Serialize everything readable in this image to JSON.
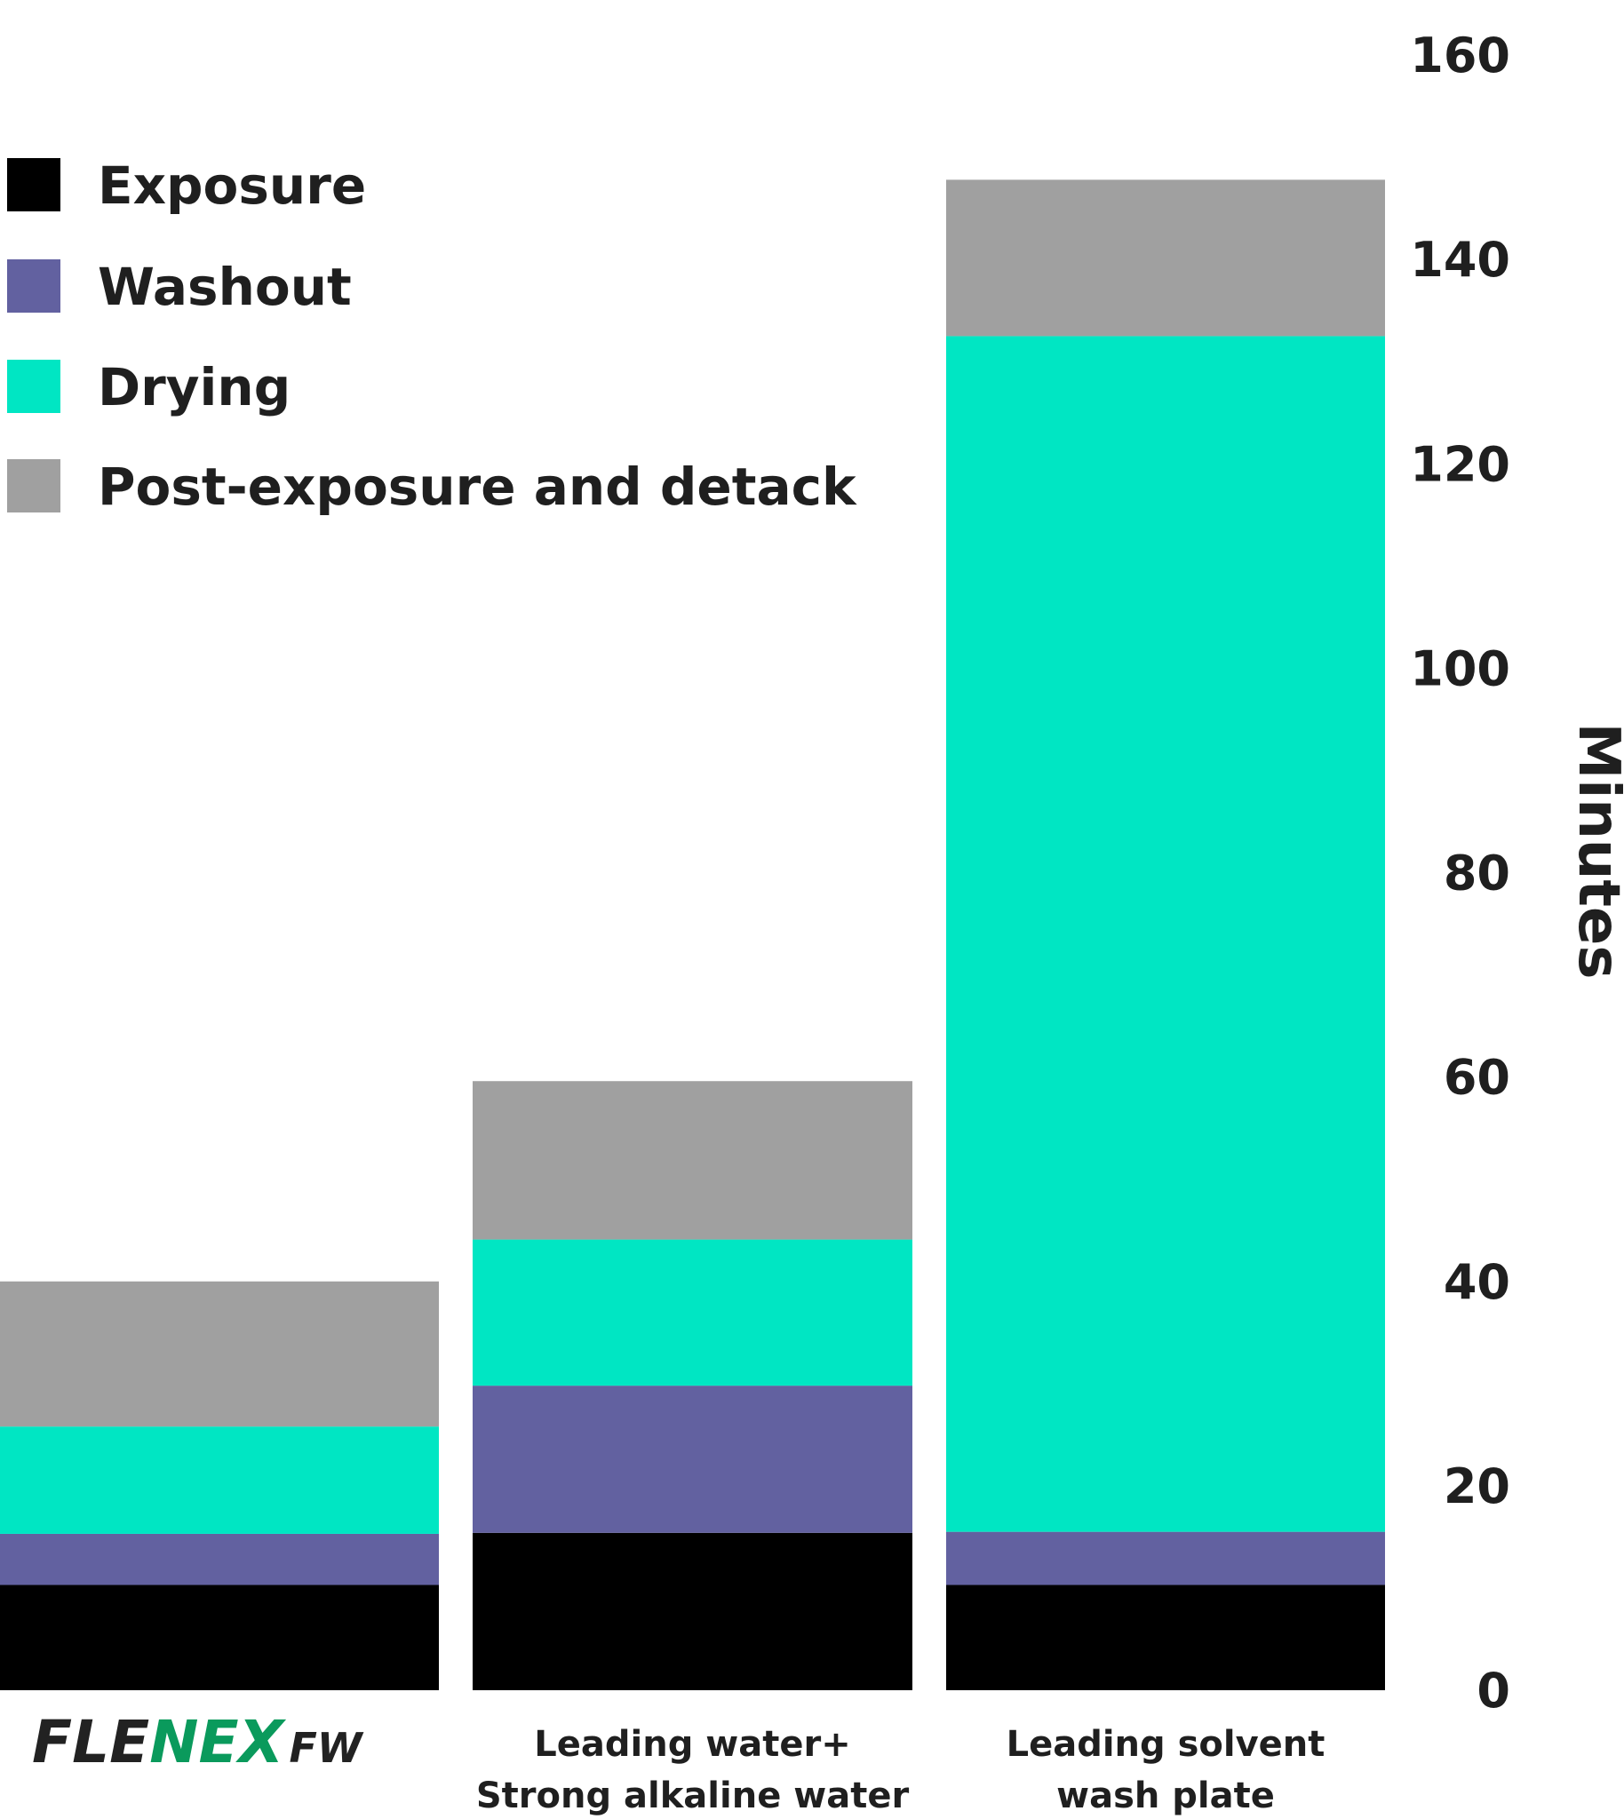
{
  "chart_data": {
    "type": "bar",
    "stacked": true,
    "title": "",
    "xlabel": "",
    "ylabel": "Minutes",
    "ylim": [
      0,
      160
    ],
    "yticks": [
      0,
      20,
      40,
      60,
      80,
      100,
      120,
      140,
      160
    ],
    "grid": false,
    "legend_position": "top-left",
    "categories": [
      {
        "logo": {
          "part1": "FLE",
          "part2": "NEX",
          "part3": "FW",
          "color_dark": "#222222",
          "color_brand": "#0a9a5c"
        }
      },
      {
        "lines": [
          "Leading water+",
          "Strong alkaline water"
        ]
      },
      {
        "lines": [
          "Leading solvent",
          "wash plate"
        ]
      }
    ],
    "series": [
      {
        "name": "Exposure",
        "color": "#000000",
        "values": [
          10.3,
          15.4,
          10.3
        ]
      },
      {
        "name": "Washout",
        "color": "#6261a0",
        "values": [
          5.0,
          14.4,
          5.2
        ]
      },
      {
        "name": "Drying",
        "color": "#00e6c3",
        "values": [
          10.5,
          14.3,
          117.0
        ]
      },
      {
        "name": "Post-exposure and detack",
        "color": "#a0a0a0",
        "values": [
          14.2,
          15.5,
          15.3
        ]
      }
    ]
  }
}
